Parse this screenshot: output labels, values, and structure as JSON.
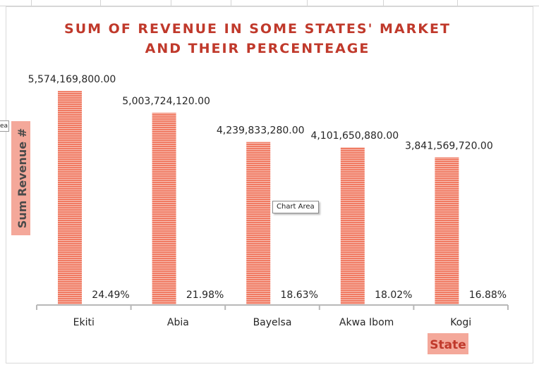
{
  "chart_data": {
    "type": "bar",
    "title_lines": [
      "SUM OF REVENUE IN SOME STATES' MARKET",
      "AND THEIR PERCENTEAGE"
    ],
    "xlabel": "State",
    "ylabel": "Sum Revenue #",
    "ylim": [
      0,
      6000000000
    ],
    "grid": false,
    "legend": "none",
    "categories": [
      "Ekiti",
      "Abia",
      "Bayelsa",
      "Akwa Ibom",
      "Kogi"
    ],
    "series": [
      {
        "values": [
          5574169800,
          5003724120,
          4239833280,
          4101650880,
          3841569720
        ],
        "value_labels": [
          "5,574,169,800.00",
          "5,003,724,120.00",
          "4,239,833,280.00",
          "4,101,650,880.00",
          "3,841,569,720.00"
        ]
      },
      {
        "values": [
          24.49,
          21.98,
          18.63,
          18.02,
          16.88
        ],
        "value_labels": [
          "24.49%",
          "21.98%",
          "18.63%",
          "18.02%",
          "16.88%"
        ]
      }
    ],
    "colors": {
      "bar": "#f07a62",
      "bar_stripe": "#ffffff",
      "title": "#c0392b",
      "axis": "#b8b8b8",
      "label_highlight": "#f4a89a",
      "xlabel_text": "#c0392b",
      "ylabel_text": "#4a4a4a"
    }
  },
  "tooltip": {
    "text": "Chart Area"
  },
  "left_tip": {
    "text": "ea"
  }
}
